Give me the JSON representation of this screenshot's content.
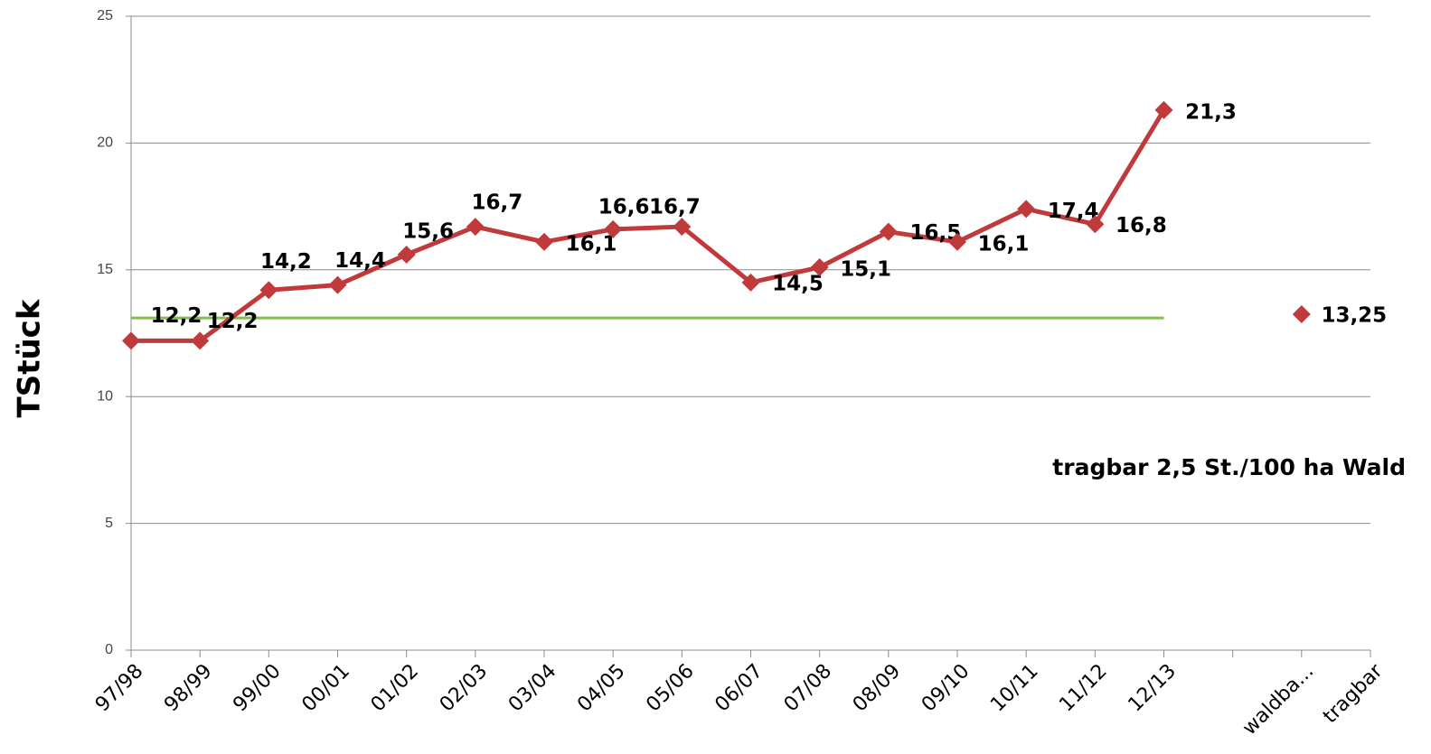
{
  "chart_data": {
    "type": "line",
    "y_label": "TStück",
    "annotation": "tragbar 2,5 St./100 ha Wald",
    "categories": [
      "97/98",
      "98/99",
      "99/00",
      "00/01",
      "01/02",
      "02/03",
      "03/04",
      "04/05",
      "05/06",
      "06/07",
      "07/08",
      "08/09",
      "09/10",
      "10/11",
      "11/12",
      "12/13",
      null,
      "waldba...",
      "tragbar"
    ],
    "series": [
      {
        "color": "#c0393b",
        "markers": true,
        "values": [
          12.2,
          12.2,
          14.2,
          14.4,
          15.6,
          16.7,
          16.1,
          16.6,
          16.7,
          14.5,
          15.1,
          16.5,
          16.1,
          17.4,
          16.8,
          21.3,
          null,
          13.25,
          null
        ],
        "value_labels": [
          "12,2",
          "12,2",
          "14,2",
          "14,4",
          "15,6",
          "16,7",
          "16,1",
          "16,6",
          "16,7",
          "14,5",
          "15,1",
          "16,5",
          "16,1",
          "17,4",
          "16,8",
          "21,3",
          null,
          "13,25",
          null
        ]
      },
      {
        "color": "#7dc242",
        "markers": false,
        "values": [
          13.1,
          13.1,
          13.1,
          13.1,
          13.1,
          13.1,
          13.1,
          13.1,
          13.1,
          13.1,
          13.1,
          13.1,
          13.1,
          13.1,
          13.1,
          13.1,
          null,
          null,
          null
        ]
      }
    ],
    "ylim": [
      0,
      25
    ],
    "yticks": [
      0,
      5,
      10,
      15,
      20,
      25
    ],
    "grid": true
  }
}
